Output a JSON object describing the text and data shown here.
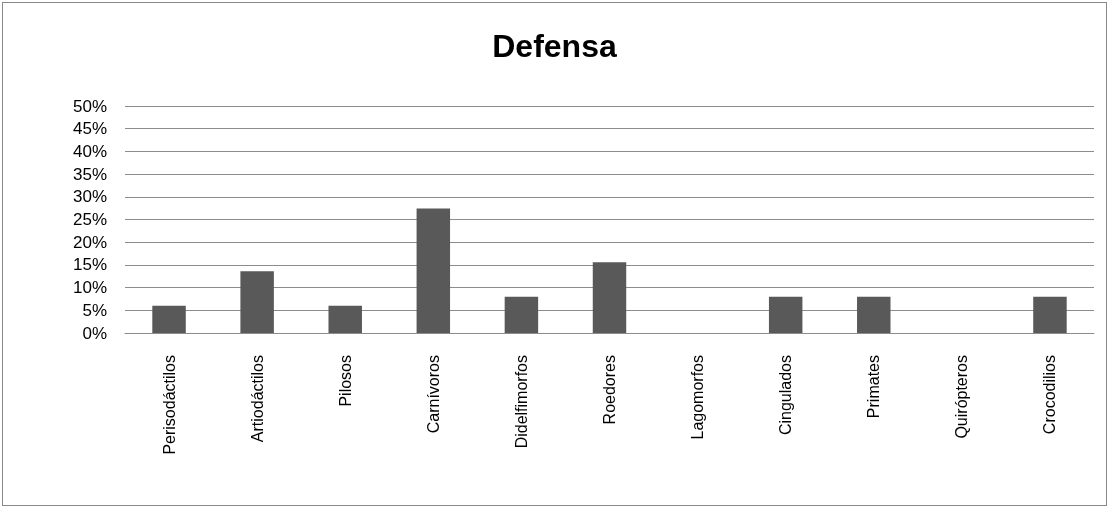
{
  "chart_data": {
    "type": "bar",
    "title": "Defensa",
    "categories": [
      "Perisodáctilos",
      "Artiodáctilos",
      "Pilosos",
      "Carnívoros",
      "Didelfimorfos",
      "Roedores",
      "Lagomorfos",
      "Cingulados",
      "Primates",
      "Quirópteros",
      "Crocodilios"
    ],
    "values": [
      6,
      13.6,
      6,
      27.4,
      8,
      15.6,
      0,
      8,
      8,
      0,
      8
    ],
    "color": "#595959",
    "ylim": [
      0,
      50
    ],
    "yticks": [
      {
        "value": 0,
        "label": "0%"
      },
      {
        "value": 5,
        "label": "5%"
      },
      {
        "value": 10,
        "label": "10%"
      },
      {
        "value": 15,
        "label": "15%"
      },
      {
        "value": 20,
        "label": "20%"
      },
      {
        "value": 25,
        "label": "25%"
      },
      {
        "value": 30,
        "label": "30%"
      },
      {
        "value": 35,
        "label": "35%"
      },
      {
        "value": 40,
        "label": "40%"
      },
      {
        "value": 45,
        "label": "45%"
      },
      {
        "value": 50,
        "label": "50%"
      }
    ],
    "grid": "y"
  }
}
